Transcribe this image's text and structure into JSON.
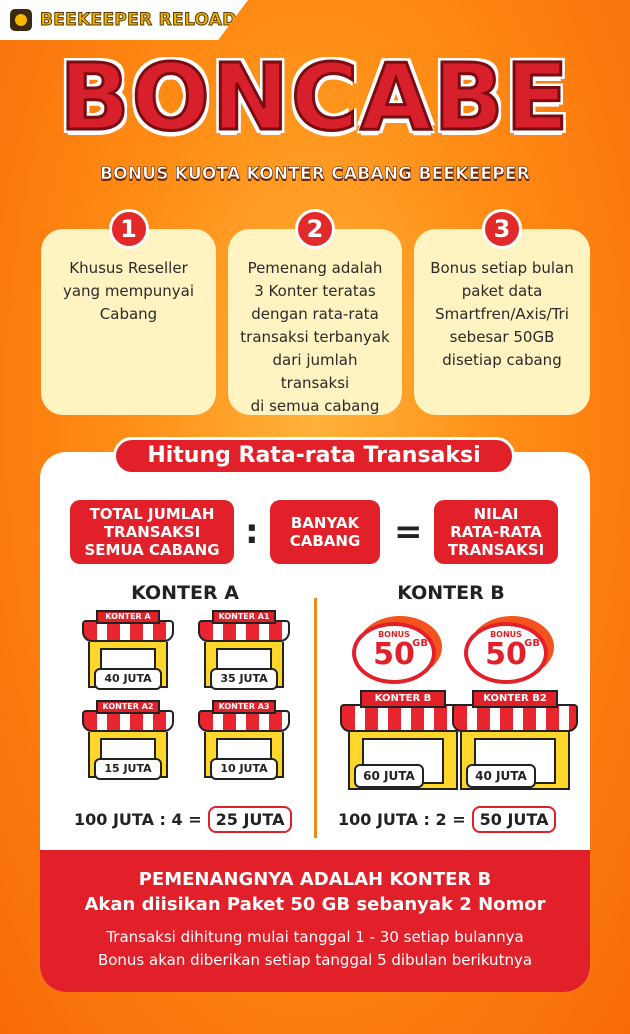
{
  "brand": {
    "name": "BEEKEEPER RELOAD",
    "logo_icon": "bee-logo-icon"
  },
  "title": "BONCABE",
  "subtitle": "BONUS KUOTA KONTER CABANG BEEKEEPER",
  "rules": [
    {
      "number": "1",
      "text": "Khusus Reseller\nyang mempunyai\nCabang"
    },
    {
      "number": "2",
      "text": "Pemenang adalah\n3  Konter teratas\ndengan rata-rata\ntransaksi terbanyak\ndari jumlah transaksi\ndi semua cabang"
    },
    {
      "number": "3",
      "text": "Bonus setiap bulan\npaket data\nSmartfren/Axis/Tri\nsebesar 50GB\ndisetiap cabang"
    }
  ],
  "calc": {
    "header": "Hitung Rata-rata Transaksi",
    "formula": {
      "a": "TOTAL JUMLAH\nTRANSAKSI\nSEMUA CABANG",
      "op1": ":",
      "b": "BANYAK\nCABANG",
      "op2": "=",
      "c": "NILAI\nRATA-RATA\nTRANSAKSI"
    },
    "konter_a": {
      "title": "KONTER A",
      "stores": [
        {
          "sign": "KONTER A",
          "amount": "40 JUTA"
        },
        {
          "sign": "KONTER A1",
          "amount": "35 JUTA"
        },
        {
          "sign": "KONTER A2",
          "amount": "15 JUTA"
        },
        {
          "sign": "KONTER A3",
          "amount": "10 JUTA"
        }
      ],
      "sum": "100 JUTA : 4 =",
      "result": "25 JUTA"
    },
    "konter_b": {
      "title": "KONTER B",
      "bonus": {
        "label": "BONUS",
        "number": "50",
        "unit": "GB"
      },
      "stores": [
        {
          "sign": "KONTER B",
          "amount": "60 JUTA"
        },
        {
          "sign": "KONTER B2",
          "amount": "40 JUTA"
        }
      ],
      "sum": "100 JUTA : 2 =",
      "result": "50 JUTA"
    }
  },
  "footer": {
    "line1": "PEMENANGNYA ADALAH KONTER B",
    "line2": "Akan diisikan Paket 50 GB sebanyak 2 Nomor",
    "line3": "Transaksi dihitung mulai tanggal 1 - 30 setiap bulannya",
    "line4": "Bonus akan diberikan setiap tanggal 5 dibulan berikutnya"
  }
}
